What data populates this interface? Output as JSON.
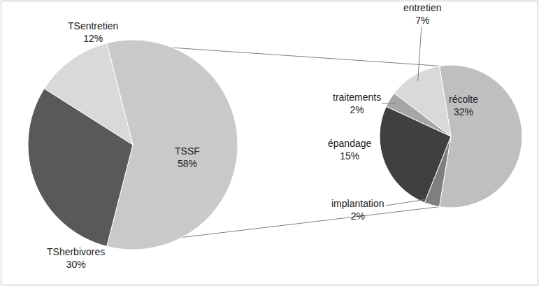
{
  "chart_data": [
    {
      "type": "pie",
      "categories": [
        "TSSF",
        "TSherbivores",
        "TSentretien"
      ],
      "values": [
        58,
        30,
        12
      ],
      "value_labels": [
        "58%",
        "30%",
        "12%"
      ],
      "colors": [
        "#c9c9c9",
        "#595959",
        "#d9d9d9"
      ],
      "data_labels": true
    },
    {
      "type": "pie",
      "categories": [
        "récolte",
        "implantation",
        "épandage",
        "traitements",
        "entretien"
      ],
      "values": [
        32,
        2,
        15,
        2,
        7
      ],
      "value_labels": [
        "32%",
        "2%",
        "15%",
        "2%",
        "7%"
      ],
      "colors": [
        "#bfbfbf",
        "#7f7f7f",
        "#404040",
        "#a6a6a6",
        "#d9d9d9"
      ],
      "data_labels": true
    }
  ]
}
